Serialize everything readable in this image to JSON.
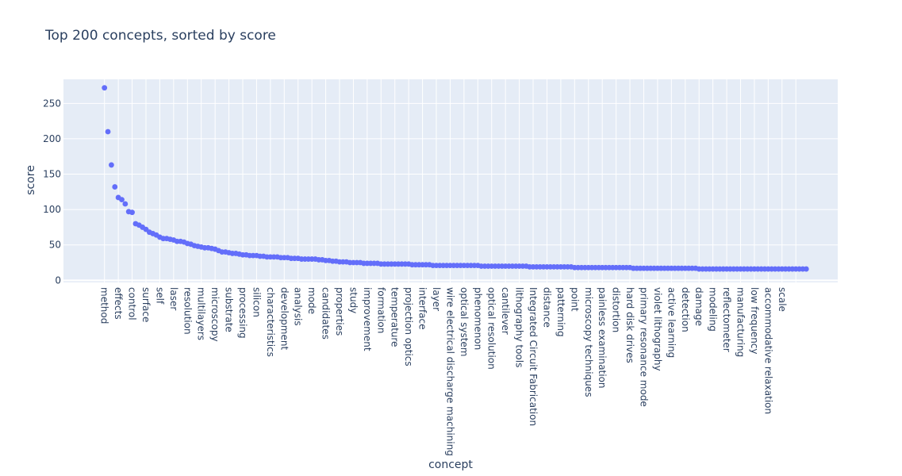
{
  "chart_data": {
    "type": "scatter",
    "title": "Top 200 concepts, sorted by score",
    "xlabel": "concept",
    "ylabel": "score",
    "ylim": [
      -3,
      284
    ],
    "yticks": [
      0,
      50,
      100,
      150,
      200,
      250
    ],
    "grid": true,
    "marker_color": "#636efa",
    "plot_bg": "#e5ecf6",
    "grid_color": "#ffffff",
    "text_color": "#2a3f5f",
    "x_tick_labels": [
      "method",
      "effects",
      "control",
      "surface",
      "self",
      "laser",
      "resolution",
      "multilayers",
      "microscopy",
      "substrate",
      "processing",
      "silicon",
      "characteristics",
      "development",
      "analysis",
      "mode",
      "candidates",
      "properties",
      "study",
      "improvement",
      "formation",
      "temperature",
      "projection optics",
      "interface",
      "layer",
      "wire electrical discharge machining",
      "optical system",
      "phenomenon",
      "optical resolution",
      "cantilever",
      "lithography tools",
      "Integrated Circuit Fabrication",
      "distance",
      "patterning",
      "point",
      "microscopy techniques",
      "painless examination",
      "distortion",
      "hard disk drives",
      "primary resonance mode",
      "violet lithography",
      "active learning",
      "detection",
      "damage",
      "modeling",
      "reflectometer",
      "manufacturing",
      "low frequency",
      "accommodative relaxation",
      "scale"
    ],
    "values": [
      272,
      210,
      163,
      132,
      117,
      114,
      108,
      97,
      96,
      80,
      78,
      75,
      72,
      68,
      66,
      64,
      61,
      59,
      59,
      58,
      57,
      55,
      55,
      54,
      52,
      51,
      49,
      48,
      47,
      46,
      46,
      45,
      44,
      42,
      40,
      40,
      39,
      38,
      38,
      37,
      36,
      36,
      35,
      35,
      35,
      34,
      34,
      33,
      33,
      33,
      33,
      32,
      32,
      32,
      31,
      31,
      31,
      30,
      30,
      30,
      30,
      30,
      29,
      29,
      28,
      28,
      27,
      27,
      26,
      26,
      26,
      25,
      25,
      25,
      25,
      24,
      24,
      24,
      24,
      24,
      23,
      23,
      23,
      23,
      23,
      23,
      23,
      23,
      23,
      22,
      22,
      22,
      22,
      22,
      22,
      21,
      21,
      21,
      21,
      21,
      21,
      21,
      21,
      21,
      21,
      21,
      21,
      21,
      21,
      20,
      20,
      20,
      20,
      20,
      20,
      20,
      20,
      20,
      20,
      20,
      20,
      20,
      20,
      19,
      19,
      19,
      19,
      19,
      19,
      19,
      19,
      19,
      19,
      19,
      19,
      19,
      18,
      18,
      18,
      18,
      18,
      18,
      18,
      18,
      18,
      18,
      18,
      18,
      18,
      18,
      18,
      18,
      18,
      17,
      17,
      17,
      17,
      17,
      17,
      17,
      17,
      17,
      17,
      17,
      17,
      17,
      17,
      17,
      17,
      17,
      17,
      17,
      16,
      16,
      16,
      16,
      16,
      16,
      16,
      16,
      16,
      16,
      16,
      16,
      16,
      16,
      16,
      16,
      16,
      16,
      16,
      16,
      16,
      16,
      16,
      16,
      16,
      16,
      16,
      16,
      16,
      16,
      16,
      16
    ]
  }
}
